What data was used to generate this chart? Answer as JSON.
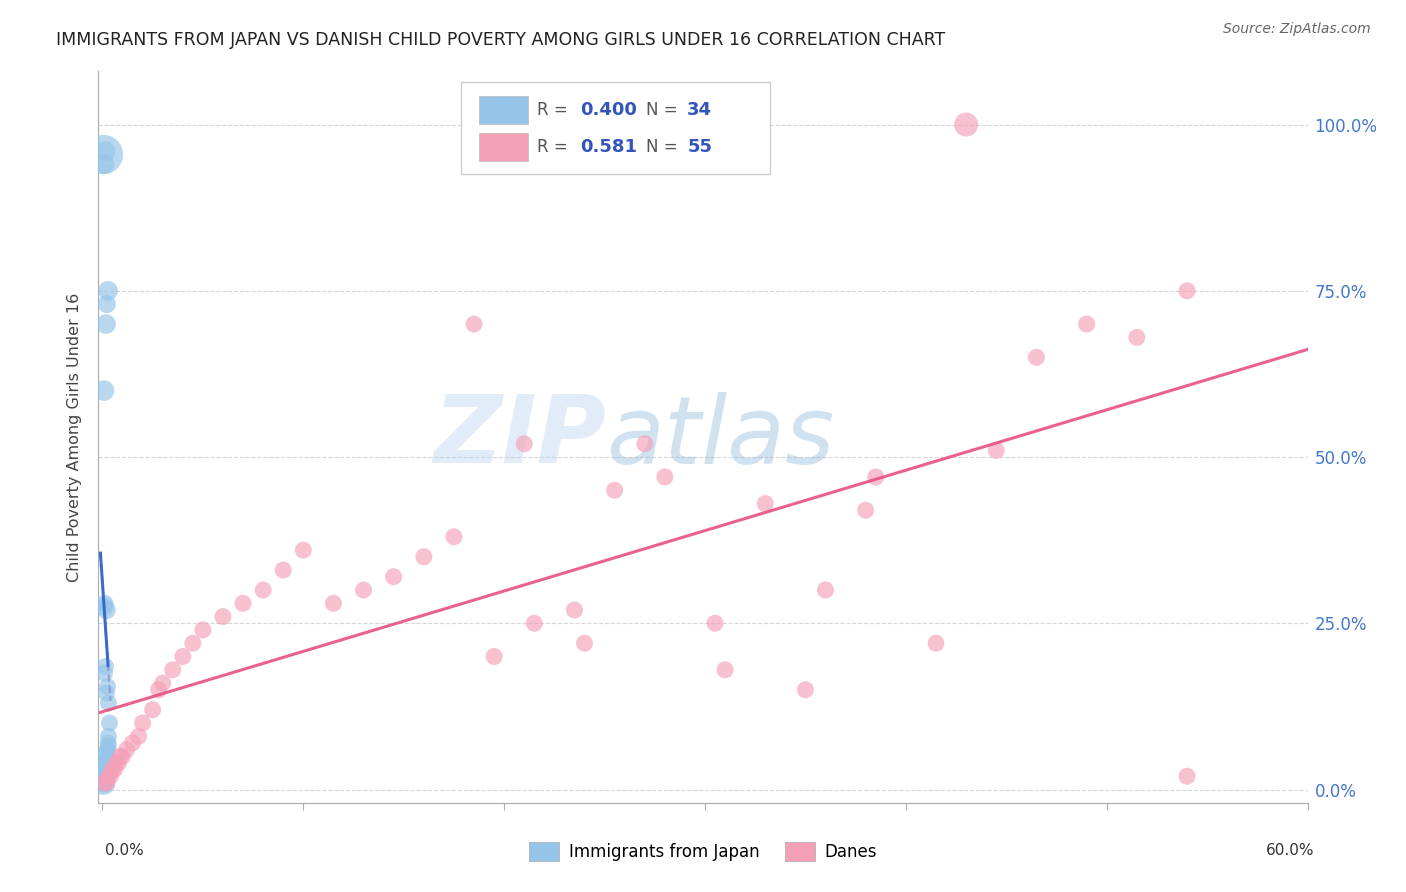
{
  "title": "IMMIGRANTS FROM JAPAN VS DANISH CHILD POVERTY AMONG GIRLS UNDER 16 CORRELATION CHART",
  "source": "Source: ZipAtlas.com",
  "ylabel": "Child Poverty Among Girls Under 16",
  "ytick_labels": [
    "0.0%",
    "25.0%",
    "50.0%",
    "75.0%",
    "100.0%"
  ],
  "ytick_values": [
    0.0,
    0.25,
    0.5,
    0.75,
    1.0
  ],
  "r_japan": 0.4,
  "n_japan": 34,
  "r_danes": 0.581,
  "n_danes": 55,
  "japan_color": "#94C4E8",
  "danes_color": "#F4A0B8",
  "japan_line_color": "#3366CC",
  "japan_dash_color": "#8899CC",
  "danes_line_color": "#E85080",
  "watermark_color": "#C8DCF4",
  "japan_x": [
    0.0005,
    0.0008,
    0.001,
    0.0012,
    0.0015,
    0.001,
    0.0008,
    0.0012,
    0.001,
    0.0015,
    0.002,
    0.0018,
    0.0022,
    0.002,
    0.0025,
    0.003,
    0.0028,
    0.003,
    0.0035,
    0.003,
    0.002,
    0.0025,
    0.001,
    0.0015,
    0.002,
    0.001,
    0.0012,
    0.0008,
    0.0018,
    0.0022,
    0.0028,
    0.001,
    0.0005,
    0.0015
  ],
  "japan_y": [
    0.01,
    0.01,
    0.01,
    0.015,
    0.015,
    0.02,
    0.02,
    0.025,
    0.03,
    0.03,
    0.04,
    0.04,
    0.05,
    0.055,
    0.06,
    0.065,
    0.07,
    0.08,
    0.1,
    0.13,
    0.145,
    0.155,
    0.175,
    0.185,
    0.27,
    0.275,
    0.28,
    0.6,
    0.7,
    0.73,
    0.75,
    0.94,
    0.955,
    0.96
  ],
  "japan_sizes": [
    300,
    200,
    150,
    200,
    150,
    150,
    200,
    180,
    180,
    160,
    160,
    160,
    150,
    150,
    150,
    150,
    150,
    150,
    150,
    150,
    150,
    150,
    150,
    150,
    180,
    180,
    150,
    220,
    200,
    170,
    200,
    200,
    800,
    200
  ],
  "danes_x": [
    0.001,
    0.002,
    0.003,
    0.004,
    0.005,
    0.006,
    0.007,
    0.008,
    0.009,
    0.01,
    0.012,
    0.015,
    0.018,
    0.02,
    0.025,
    0.028,
    0.03,
    0.035,
    0.04,
    0.045,
    0.05,
    0.06,
    0.07,
    0.08,
    0.09,
    0.1,
    0.115,
    0.13,
    0.145,
    0.16,
    0.175,
    0.195,
    0.215,
    0.235,
    0.255,
    0.28,
    0.305,
    0.33,
    0.36,
    0.385,
    0.415,
    0.445,
    0.465,
    0.49,
    0.515,
    0.54,
    0.43,
    0.38,
    0.35,
    0.27,
    0.31,
    0.24,
    0.21,
    0.185,
    0.54
  ],
  "danes_y": [
    0.01,
    0.01,
    0.02,
    0.02,
    0.03,
    0.03,
    0.04,
    0.04,
    0.05,
    0.05,
    0.06,
    0.07,
    0.08,
    0.1,
    0.12,
    0.15,
    0.16,
    0.18,
    0.2,
    0.22,
    0.24,
    0.26,
    0.28,
    0.3,
    0.33,
    0.36,
    0.28,
    0.3,
    0.32,
    0.35,
    0.38,
    0.2,
    0.25,
    0.27,
    0.45,
    0.47,
    0.25,
    0.43,
    0.3,
    0.47,
    0.22,
    0.51,
    0.65,
    0.7,
    0.68,
    0.75,
    1.0,
    0.42,
    0.15,
    0.52,
    0.18,
    0.22,
    0.52,
    0.7,
    0.02
  ],
  "danes_sizes": [
    150,
    150,
    150,
    150,
    150,
    150,
    150,
    150,
    150,
    150,
    150,
    150,
    150,
    150,
    150,
    150,
    150,
    150,
    150,
    150,
    150,
    150,
    150,
    150,
    150,
    150,
    150,
    150,
    150,
    150,
    150,
    150,
    150,
    150,
    150,
    150,
    150,
    150,
    150,
    150,
    150,
    150,
    150,
    150,
    150,
    150,
    300,
    150,
    150,
    150,
    150,
    150,
    150,
    150,
    150
  ]
}
